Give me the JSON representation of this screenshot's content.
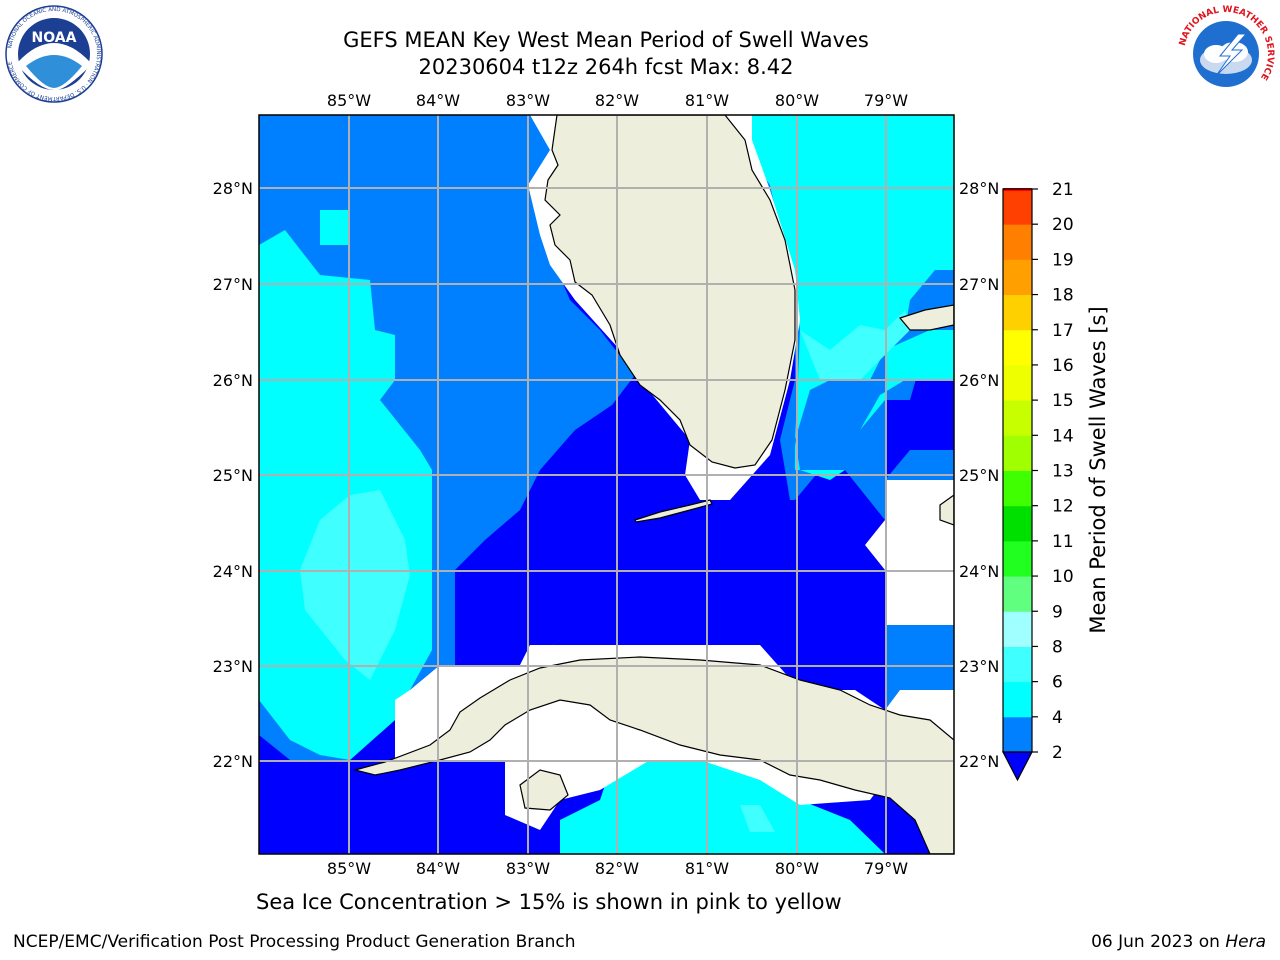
{
  "title": {
    "line1": "GEFS MEAN Key West Mean Period of Swell Waves",
    "line2": "20230604 t12z 264h fcst   Max: 8.42"
  },
  "logos": {
    "left": {
      "icon": "noaa-logo-icon",
      "text": "NOAA",
      "ring_text": "NATIONAL OCEANIC AND ATMOSPHERIC ADMINISTRATION · U.S. DEPARTMENT OF COMMERCE"
    },
    "right": {
      "icon": "nws-logo-icon",
      "ring_text": "NATIONAL WEATHER SERVICE"
    }
  },
  "map": {
    "lon_ticks": [
      "85°W",
      "84°W",
      "83°W",
      "82°W",
      "81°W",
      "80°W",
      "79°W"
    ],
    "lat_ticks": [
      "28°N",
      "27°N",
      "26°N",
      "25°N",
      "24°N",
      "23°N",
      "22°N"
    ],
    "colors": {
      "land": "#eeeedd",
      "grid": "#b0b0b0",
      "period_2_4": "#0000ff",
      "period_4_6": "#0080ff",
      "period_6_8": "#00ffff",
      "period_8_9": "#40ffff"
    }
  },
  "colorbar": {
    "label": "Mean Period of Swell Waves [s]",
    "ticks": [
      "2",
      "4",
      "6",
      "8",
      "9",
      "10",
      "11",
      "12",
      "13",
      "14",
      "15",
      "16",
      "17",
      "18",
      "19",
      "20",
      "21"
    ],
    "colors": [
      "#0080ff",
      "#00ffff",
      "#40ffff",
      "#a0ffff",
      "#60ff80",
      "#20ff20",
      "#00e000",
      "#40ff00",
      "#a0ff00",
      "#c8ff00",
      "#eeff00",
      "#ffff00",
      "#ffd000",
      "#ffa000",
      "#ff8000",
      "#ff4000",
      "#ff0000"
    ],
    "under_color": "#0000ff"
  },
  "note": "Sea Ice Concentration > 15% is shown in pink to yellow",
  "footer": {
    "left": "NCEP/EMC/Verification Post Processing Product Generation Branch",
    "date": "06 Jun 2023 on ",
    "host": "Hera"
  }
}
